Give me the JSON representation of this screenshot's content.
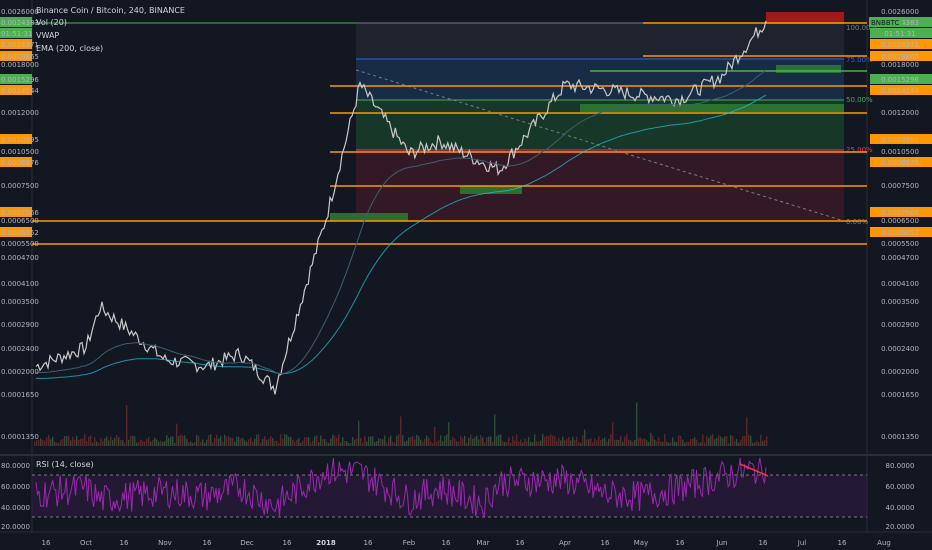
{
  "header": {
    "title": "Binance Coin / Bitcoin, 240, BINANCE",
    "vol": "Vol (20)",
    "vwap": "VWAP",
    "ema": "EMA (200, close)"
  },
  "rsi_header": "RSI (14, close)",
  "colors": {
    "background": "#131722",
    "candle_up": "#c9c9c9",
    "candle_down": "#7d7d7d",
    "orange_line": "#ff9800",
    "vwap": "#26c6da",
    "ema": "#3f5e6e",
    "rsi_line": "#9c27b0",
    "green_zone": "#4caf50",
    "red_zone": "#c2185b",
    "fib_blue": "#1e3a5f"
  },
  "left_axis": {
    "labels": [
      "0.0026000",
      "0.0024383",
      "01:51:31",
      "0.0024371",
      "0.0019865",
      "0.0018000",
      "0.0015296",
      "0.0014144",
      "0.0012000",
      "0.0010995",
      "0.0010500",
      "0.0008976",
      "0.0007500",
      "0.0007066",
      "0.0006500",
      "0.0006052",
      "0.0005500",
      "0.0004700",
      "0.0004100",
      "0.0003500",
      "0.0002900",
      "0.0002400",
      "0.0002000",
      "0.0001650",
      "0.0001350",
      "80.0000",
      "60.0000",
      "40.0000",
      "20.0000"
    ]
  },
  "right_axis": {
    "labels": [
      "0.0026000",
      "0.0024383",
      "01:51:31",
      "0.0024371",
      "0.0019865",
      "0.0018000",
      "0.0015296",
      "0.0014144",
      "0.0012000",
      "0.0010995",
      "0.0010500",
      "0.0008976",
      "0.0007500",
      "0.0007066",
      "0.0006500",
      "0.0006052",
      "0.0005500",
      "0.0004700",
      "0.0004100",
      "0.0003500",
      "0.0002900",
      "0.0002400",
      "0.0002000",
      "0.0001650",
      "0.0001350",
      "80.0000",
      "60.0000",
      "40.0000",
      "20.0000"
    ],
    "symbol_badge": "BNBBTC"
  },
  "price_lines": [
    {
      "value": "0.0024383",
      "color": "#4caf50"
    },
    {
      "value": "0.0024371",
      "color": "#ff9800"
    },
    {
      "value": "0.0019865",
      "color": "#ff9800"
    },
    {
      "value": "0.0015296",
      "color": "#4caf50"
    },
    {
      "value": "0.0014144",
      "color": "#ff9800"
    },
    {
      "value": "0.0010995",
      "color": "#ff9800"
    },
    {
      "value": "0.0008976",
      "color": "#ff9800"
    },
    {
      "value": "0.0007066",
      "color": "#ff9800"
    },
    {
      "value": "0.0006052",
      "color": "#ff9800"
    }
  ],
  "fib_levels": [
    {
      "label": "100.00%",
      "color": "#787b86"
    },
    {
      "label": "75.00%",
      "color": "#2962ff"
    },
    {
      "label": "50.00%",
      "color": "#4caf50"
    },
    {
      "label": "25.00%",
      "color": "#f23645"
    },
    {
      "label": "0.00%",
      "color": "#787b86"
    }
  ],
  "x_axis": {
    "labels": [
      "16",
      "Oct",
      "16",
      "Nov",
      "16",
      "Dec",
      "16",
      "2018",
      "16",
      "Feb",
      "16",
      "Mar",
      "16",
      "Apr",
      "16",
      "May",
      "16",
      "Jun",
      "16",
      "Jul",
      "16",
      "Aug"
    ]
  },
  "rsi_axis": {
    "labels": [
      "80.0000",
      "60.0000",
      "40.0000",
      "20.0000"
    ]
  },
  "chart_data": [
    {
      "type": "line",
      "title": "Binance Coin / Bitcoin, 240, BINANCE",
      "series": [
        {
          "name": "BNBBTC",
          "x": [
            "16",
            "Oct",
            "16",
            "Nov",
            "16",
            "Dec",
            "16",
            "2018",
            "16",
            "Feb",
            "16",
            "Mar",
            "16",
            "Apr",
            "16",
            "May",
            "16",
            "Jun",
            "16"
          ],
          "values": [
            0.00021,
            0.00024,
            0.00032,
            0.00022,
            0.00021,
            0.00023,
            0.00018,
            0.0006,
            0.00155,
            0.00095,
            0.00104,
            0.00089,
            0.00085,
            0.00155,
            0.0015,
            0.00144,
            0.0014,
            0.00165,
            0.00244
          ]
        }
      ],
      "yscale": "log",
      "ylim": [
        0.00012,
        0.0026
      ]
    },
    {
      "type": "line",
      "title": "RSI (14, close)",
      "series": [
        {
          "name": "RSI (14, close)",
          "x": [
            "16",
            "Oct",
            "16",
            "Nov",
            "16",
            "Dec",
            "16",
            "2018",
            "16",
            "Feb",
            "16",
            "Mar",
            "16",
            "Apr",
            "16",
            "May",
            "16",
            "Jun",
            "16"
          ],
          "values": [
            50,
            55,
            45,
            52,
            48,
            56,
            40,
            70,
            68,
            45,
            55,
            42,
            60,
            62,
            50,
            48,
            55,
            65,
            72
          ]
        }
      ],
      "ylim": [
        20,
        80
      ]
    }
  ]
}
